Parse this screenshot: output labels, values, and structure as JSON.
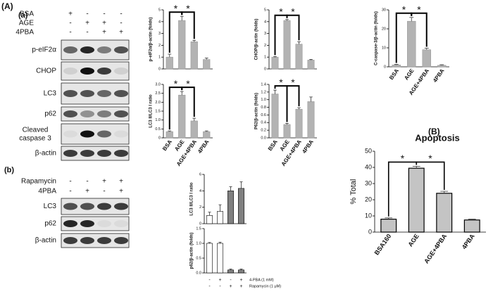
{
  "panel_labels": {
    "A": "(A)",
    "a": "(a)",
    "b": "(b)",
    "B": "(B)"
  },
  "blots": {
    "a": {
      "header": [
        {
          "label": "BSA",
          "signs": [
            "+",
            "-",
            "-",
            "-"
          ]
        },
        {
          "label": "AGE",
          "signs": [
            "-",
            "+",
            "+",
            "-"
          ]
        },
        {
          "label": "4PBA",
          "signs": [
            "-",
            "-",
            "+",
            "+"
          ]
        }
      ],
      "rows": [
        "p-eIF2α",
        "CHOP",
        "LC3",
        "p62",
        "Cleaved caspase 3",
        "β-actin"
      ]
    },
    "b": {
      "header": [
        {
          "label": "Rapamycin",
          "signs": [
            "-",
            "-",
            "+",
            "+"
          ]
        },
        {
          "label": "4PBA",
          "signs": [
            "-",
            "+",
            "-",
            "+"
          ]
        }
      ],
      "rows": [
        "LC3",
        "p62",
        "β-actin"
      ]
    }
  },
  "chart_data": [
    {
      "type": "bar",
      "y_label": "p-eIF2α/β-actin (folds)",
      "categories": [
        null,
        null,
        null,
        null
      ],
      "values": [
        1.0,
        4.1,
        2.3,
        0.8
      ],
      "errors": [
        0.25,
        0.35,
        0.12,
        0.12
      ],
      "color": "#b3b3b3",
      "ylim": [
        0,
        5
      ],
      "yticks": [
        0,
        1,
        2,
        3,
        4,
        5
      ],
      "annotations": [
        "*",
        "*"
      ]
    },
    {
      "type": "bar",
      "y_label": "CHOP/β-actin (folds)",
      "categories": [
        null,
        null,
        null,
        null
      ],
      "values": [
        1.0,
        4.1,
        2.1,
        0.75
      ],
      "errors": [
        0.05,
        0.08,
        0.2,
        0.06
      ],
      "color": "#b3b3b3",
      "ylim": [
        0,
        5
      ],
      "yticks": [
        0,
        1,
        2,
        3,
        4,
        5
      ],
      "annotations": [
        "*",
        "*"
      ]
    },
    {
      "type": "bar",
      "y_label": "C-caspase-3/β-actin (folds)",
      "categories": [
        "BSA",
        "AGE",
        "AGE+4PBA",
        "4PBA"
      ],
      "values": [
        1,
        24,
        9,
        0.8
      ],
      "errors": [
        0.3,
        2,
        0.8,
        0.3
      ],
      "color": "#b3b3b3",
      "ylim": [
        0,
        30
      ],
      "yticks": [
        0,
        10,
        20,
        30
      ],
      "annotations": [
        "*",
        "*"
      ]
    },
    {
      "type": "bar",
      "y_label": "LC3 II/LC3 I ratio",
      "categories": [
        "BSA",
        "AGE",
        "AGE+4PBA",
        "4PBA"
      ],
      "values": [
        0.35,
        2.4,
        0.95,
        0.35
      ],
      "errors": [
        0.04,
        0.2,
        0.15,
        0.04
      ],
      "color": "#b3b3b3",
      "ylim": [
        0,
        3
      ],
      "yticks": [
        0,
        0.5,
        {
          "value": 1,
          "label": "1.0"
        },
        1.5,
        {
          "value": 2,
          "label": "2.0"
        },
        2.5,
        {
          "value": 3,
          "label": "3.0"
        }
      ],
      "annotations": [
        "*",
        "*"
      ]
    },
    {
      "type": "bar",
      "y_label": "P62/β-actin (folds)",
      "categories": [
        "BSA",
        "AGE",
        "AGE+4PBA",
        "4PBA"
      ],
      "values": [
        1.15,
        0.35,
        0.75,
        0.95
      ],
      "errors": [
        0.1,
        0.03,
        0.04,
        0.12
      ],
      "color": "#b3b3b3",
      "ylim": [
        0,
        1.4
      ],
      "yticks": [
        {
          "value": 0,
          "label": "0.0"
        },
        0.2,
        0.4,
        0.6,
        0.8,
        {
          "value": 1,
          "label": "1.0"
        },
        1.2,
        1.4
      ],
      "annotations": [
        "*",
        "*"
      ]
    },
    {
      "type": "bar",
      "y_label": "LC3 II/LC3 I ratio",
      "categories": [
        null,
        null,
        null,
        null
      ],
      "values": [
        1.0,
        1.5,
        4.0,
        4.3
      ],
      "errors": [
        0.4,
        0.8,
        0.5,
        0.8
      ],
      "colors": [
        "#ffffff",
        "#ffffff",
        "#808080",
        "#808080"
      ],
      "ylim": [
        0,
        6
      ],
      "yticks": [
        0,
        2,
        4,
        6
      ]
    },
    {
      "type": "bar",
      "y_label": "p62/β-actin (folds)",
      "categories": [
        null,
        null,
        null,
        null
      ],
      "values": [
        1.0,
        1.0,
        0.1,
        0.1
      ],
      "errors": [
        0.03,
        0.04,
        0.03,
        0.03
      ],
      "colors": [
        "#ffffff",
        "#ffffff",
        "#808080",
        "#808080"
      ],
      "ylim": [
        0,
        1.5
      ],
      "yticks": [
        {
          "value": 0,
          "label": "0.0"
        },
        0.5,
        {
          "value": 1,
          "label": "1.0"
        },
        1.5
      ],
      "x_table": [
        {
          "label": "4-PBA (1 mM)",
          "signs": [
            "-",
            "+",
            "-",
            "+"
          ]
        },
        {
          "label": "Rapamycin (1 μM)",
          "signs": [
            "-",
            "-",
            "+",
            "+"
          ]
        }
      ]
    },
    {
      "type": "bar",
      "title": "Apoptosis",
      "y_label": "% Total",
      "categories": [
        "BSA160",
        "AGE",
        "AGE+4PBA",
        "4PBA"
      ],
      "values": [
        8,
        39.5,
        24,
        7.5
      ],
      "errors": [
        0.8,
        1.2,
        1.2,
        0.5
      ],
      "color": "#c4c4c4",
      "ylim": [
        0,
        50
      ],
      "yticks": [
        0,
        10,
        20,
        30,
        40,
        50
      ],
      "annotations": [
        "*",
        "*"
      ]
    }
  ]
}
